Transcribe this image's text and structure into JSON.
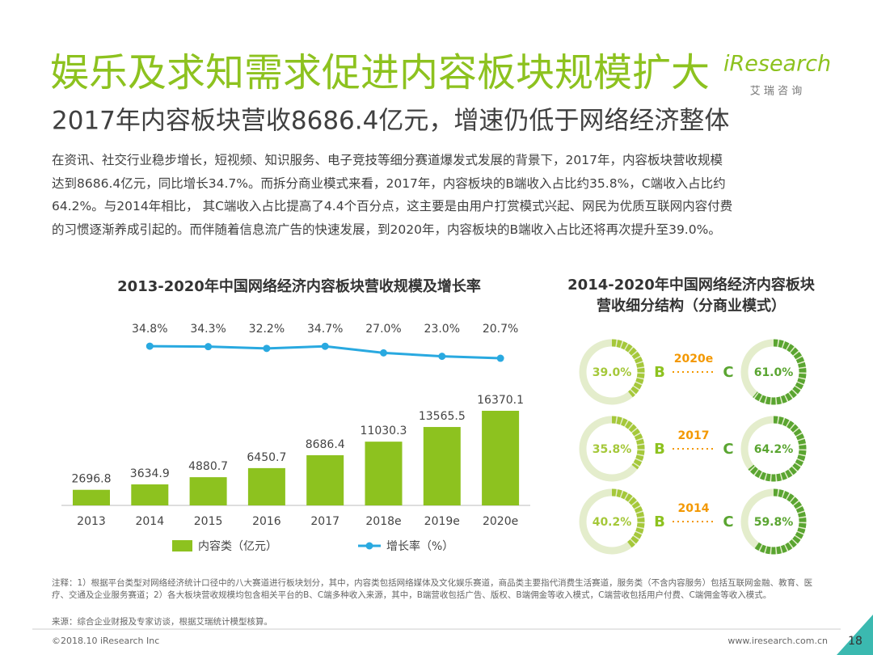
{
  "header": {
    "title": "娱乐及求知需求促进内容板块规模扩大",
    "subtitle": "2017年内容板块营收8686.4亿元，增速仍低于网络经济整体",
    "logo": "iResearch",
    "logo_sub": "艾 瑞 咨 询"
  },
  "body_lines": [
    "在资讯、社交行业稳步增长，短视频、知识服务、电子竞技等细分赛道爆发式发展的背景下，2017年，内容板块营收规模",
    "达到8686.4亿元，同比增长34.7%。而拆分商业模式来看，2017年，内容板块的B端收入占比约35.8%，C端收入占比约",
    "64.2%。与2014年相比， 其C端收入占比提高了4.4个百分点，这主要是由用户打赏模式兴起、网民为优质互联网内容付费",
    "的习惯逐渐养成引起的。而伴随着信息流广告的快速发展，到2020年，内容板块的B端收入占比还将再次提升至39.0%。"
  ],
  "chart_data": [
    {
      "type": "bar",
      "title": "2013-2020年中国网络经济内容板块营收规模及增长率",
      "categories": [
        "2013",
        "2014",
        "2015",
        "2016",
        "2017",
        "2018e",
        "2019e",
        "2020e"
      ],
      "series": [
        {
          "name": "内容类（亿元）",
          "type": "bar",
          "color": "#8dc21f",
          "values": [
            2696.8,
            3634.9,
            4880.7,
            6450.7,
            8686.4,
            11030.3,
            13565.5,
            16370.1
          ]
        },
        {
          "name": "增长率（%）",
          "type": "line",
          "axis": "y2",
          "color": "#29a9e0",
          "values": [
            null,
            34.8,
            34.3,
            32.2,
            34.7,
            27,
            23,
            20.7
          ],
          "value_labels": [
            null,
            "34.8%",
            "34.3%",
            "32.2%",
            "34.7%",
            "27.0%",
            "23.0%",
            "20.7%"
          ]
        }
      ]
    },
    {
      "type": "donut",
      "title_lines": [
        "2014-2020年中国网络经济内容板块",
        "营收细分结构（分商业模式）"
      ],
      "categories": [
        "2020e",
        "2017",
        "2014"
      ],
      "series": [
        {
          "name": "B",
          "color": "#a5c83a",
          "values": [
            39,
            35.8,
            40.2
          ],
          "value_labels": [
            "39.0%",
            "35.8%",
            "40.2%"
          ]
        },
        {
          "name": "C",
          "color": "#5aa531",
          "values": [
            61,
            64.2,
            59.8
          ],
          "value_labels": [
            "61.0%",
            "64.2%",
            "59.8%"
          ]
        }
      ]
    }
  ],
  "notes": "注释：1）根据平台类型对网络经济统计口径中的八大赛道进行板块划分，其中，内容类包括网络媒体及文化娱乐赛道，商品类主要指代消费生活赛道，服务类（不含内容服务）包括互联网金融、教育、医疗、交通及企业服务赛道；2）各大板块营收规模均包含相关平台的B、C端多种收入来源，其中，B端营收包括广告、版权、B端佣金等收入模式，C端营收包括用户付费、C端佣金等收入模式。",
  "source": "来源：综合企业财报及专家访谈，根据艾瑞统计模型核算。",
  "footer": {
    "copyright": "©2018.10 iResearch Inc",
    "url": "www.iresearch.com.cn",
    "page": 18
  }
}
